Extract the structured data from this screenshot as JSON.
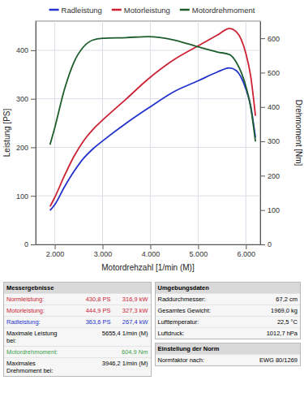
{
  "chart_data": {
    "type": "line",
    "x_label": "Motordrehzahl [1/min (M)]",
    "y_label": "Leistung [PS]",
    "y2_label": "Drehmoment [Nm]",
    "x": [
      1900,
      2000,
      2200,
      2400,
      2600,
      2800,
      3000,
      3500,
      3946,
      4500,
      5000,
      5400,
      5655,
      5800,
      6000,
      6100,
      6200
    ],
    "series": [
      {
        "name": "Radleistung",
        "color": "#2233cc",
        "values": [
          70,
          82,
          118,
          150,
          177,
          197,
          213,
          250,
          280,
          315,
          337,
          355,
          363.6,
          358,
          320,
          285,
          220
        ]
      },
      {
        "name": "Motorleistung",
        "color": "#cc2233",
        "values": [
          78,
          97,
          141,
          181,
          213,
          237,
          256,
          300,
          340,
          381,
          409,
          431,
          444.9,
          438,
          393,
          347,
          265
        ]
      },
      {
        "name": "Motordrehmoment",
        "color": "#1d5e2c",
        "axis": "y2",
        "values": [
          290,
          340,
          450,
          530,
          575,
          595,
          600,
          602,
          604.9,
          595,
          575,
          560,
          553,
          530,
          460,
          400,
          300
        ]
      }
    ],
    "xlim": [
      1600,
      6300
    ],
    "xticks": [
      {
        "value": 2000,
        "label": "2.000"
      },
      {
        "value": 3000,
        "label": "3.000"
      },
      {
        "value": 4000,
        "label": "4.000"
      },
      {
        "value": 5000,
        "label": "5.000"
      },
      {
        "value": 6000,
        "label": "6.000"
      }
    ],
    "ylim": [
      0,
      460
    ],
    "yticks": [
      0,
      100,
      200,
      300,
      400
    ],
    "y2lim": [
      0,
      650
    ],
    "y2ticks": [
      0,
      100,
      200,
      300,
      400,
      500,
      600
    ],
    "grid": true,
    "legend": "top"
  },
  "measurements": {
    "title": "Messergebnisse",
    "rows": [
      {
        "cells": [
          "Normleistung:",
          "430,8 PS",
          "316,9 kW"
        ],
        "color": "#cc2233"
      },
      {
        "cells": [
          "Motorleistung:",
          "444,9 PS",
          "327,3 kW"
        ],
        "color": "#cc2233"
      },
      {
        "cells": [
          "Radleistung:",
          "363,6 PS",
          "267,4 kW"
        ],
        "color": "#2233cc"
      },
      {
        "cells": [
          "Maximale Leistung bei:",
          "5655,4 1/min (M)"
        ],
        "color": "#000000"
      },
      {
        "cells": [
          "Motordrehmoment:",
          "604,9 Nm"
        ],
        "color": "#3aa04a"
      },
      {
        "cells": [
          "Maximales Drehmoment bei:",
          "3946,2 1/min (M)"
        ],
        "color": "#000000"
      }
    ]
  },
  "environment": {
    "title": "Umgebungsdaten",
    "rows": [
      [
        "Raddurchmesser:",
        "67,2 cm"
      ],
      [
        "Gesamtes Gewicht:",
        "1969,0 kg"
      ],
      [
        "Lufttemperatur:",
        "22,5 °C"
      ],
      [
        "Luftdruck:",
        "1012,7 hPa"
      ]
    ]
  },
  "norm": {
    "title": "Einstellung der Norm",
    "rows": [
      [
        "Normfaktor nach:",
        "EWG 80/1269"
      ]
    ]
  }
}
